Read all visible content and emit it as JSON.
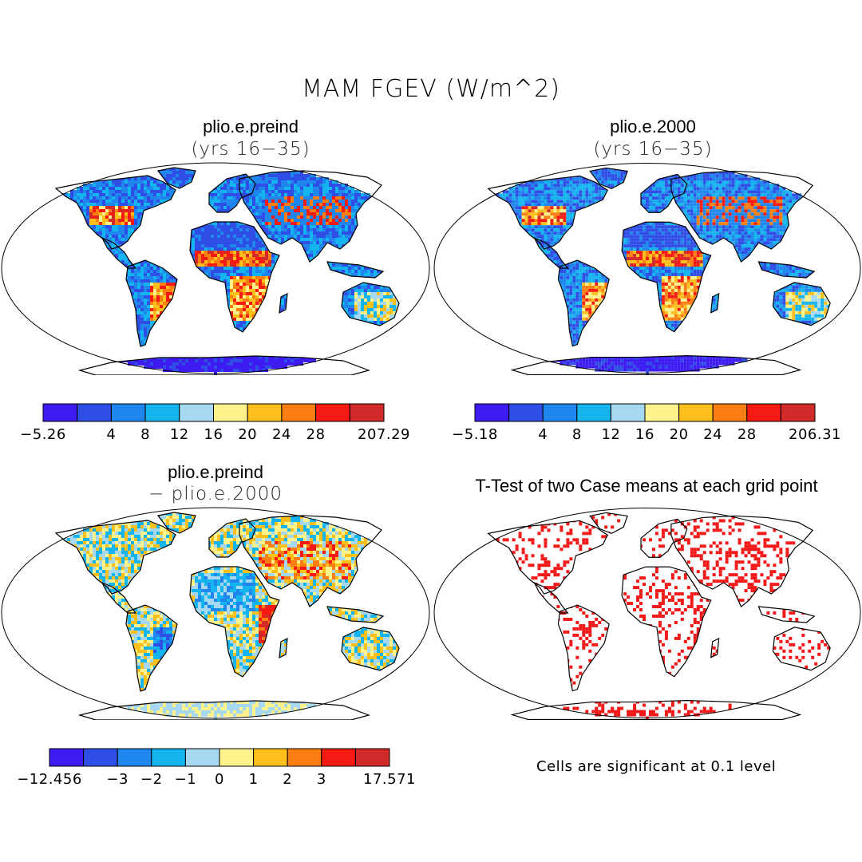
{
  "title": "MAM FGEV (W/m^2)",
  "panels": [
    {
      "title": "plio.e.preind",
      "subtitle": "(yrs 16−35)",
      "field": "mean_a"
    },
    {
      "title": "plio.e.2000",
      "subtitle": "(yrs 16−35)",
      "field": "mean_b"
    },
    {
      "title": "plio.e.preind",
      "subtitle": "− plio.e.2000",
      "field": "diff"
    },
    {
      "title": "T-Test of two Case means at each grid point",
      "subtitle": "",
      "field": "ttest"
    }
  ],
  "colorbars": [
    {
      "colors": [
        "#3d1cf2",
        "#2f4ee6",
        "#1f86ee",
        "#14b4ee",
        "#a6d8f2",
        "#fdf28c",
        "#fdbf1c",
        "#fb7e12",
        "#f61a12",
        "#d22a2a"
      ],
      "labels": [
        "−5.26",
        "4",
        "8",
        "12",
        "16",
        "20",
        "24",
        "28",
        "207.29"
      ]
    },
    {
      "colors": [
        "#3d1cf2",
        "#2f4ee6",
        "#1f86ee",
        "#14b4ee",
        "#a6d8f2",
        "#fdf28c",
        "#fdbf1c",
        "#fb7e12",
        "#f61a12",
        "#d22a2a"
      ],
      "labels": [
        "−5.18",
        "4",
        "8",
        "12",
        "16",
        "20",
        "24",
        "28",
        "206.31"
      ]
    },
    {
      "colors": [
        "#3d1cf2",
        "#2f4ee6",
        "#1f86ee",
        "#14b4ee",
        "#a6d8f2",
        "#fdf28c",
        "#fdbf1c",
        "#fb7e12",
        "#f61a12",
        "#d22a2a"
      ],
      "labels": [
        "−12.456",
        "−3",
        "−2",
        "−1",
        "0",
        "1",
        "2",
        "3",
        "17.571"
      ]
    }
  ],
  "note": "Cells are significant at 0.1 level",
  "colors": {
    "significant": "#f21818",
    "coastline": "#000000",
    "background": "#ffffff"
  }
}
